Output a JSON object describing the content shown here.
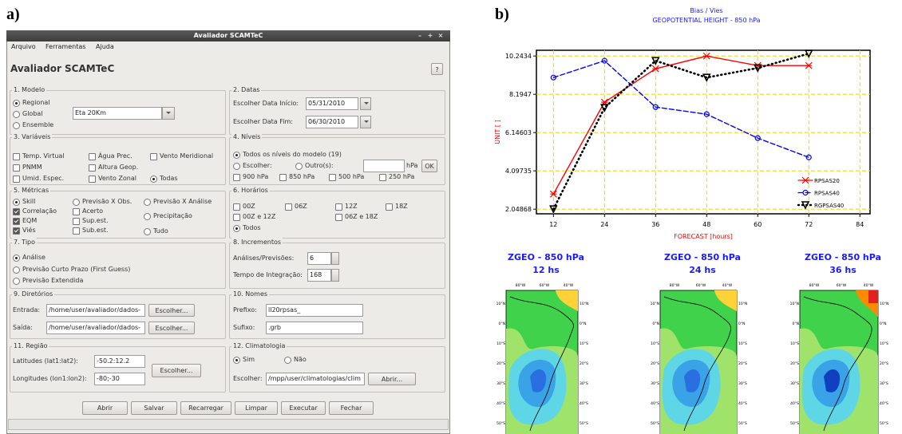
{
  "figure_labels": [
    "a)",
    "b)"
  ],
  "window": {
    "title": "Avaliador SCAMTeC",
    "controls": [
      "–",
      "+",
      "×"
    ]
  },
  "menu": [
    "Arquivo",
    "Ferramentas",
    "Ajuda"
  ],
  "header": {
    "title": "Avaliador SCAMTeC",
    "help": "?"
  },
  "panels": [
    {
      "title": "1. Modelo",
      "items": [
        {
          "label": "Regional",
          "control": "radio",
          "on": true
        },
        {
          "label": "Global",
          "control": "radio"
        },
        {
          "label": "Ensemble",
          "control": "radio"
        }
      ],
      "combo": "Eta 20Km"
    },
    {
      "title": "2. Datas",
      "fields": [
        {
          "label": "Escolher Data Início:",
          "value": "05/31/2010"
        },
        {
          "label": "Escolher Data Fim:",
          "value": "06/30/2010"
        }
      ]
    },
    {
      "title": "3. Variáveis",
      "items": [
        {
          "label": "Temp. Virtual",
          "control": "check"
        },
        {
          "label": "Água Prec.",
          "control": "check"
        },
        {
          "label": "Vento Meridional",
          "control": "check"
        },
        {
          "label": "PNMM",
          "control": "check"
        },
        {
          "label": "Altura Geop.",
          "control": "check"
        },
        {
          "label": "Umid. Espec.",
          "control": "check"
        },
        {
          "label": "Vento Zonal",
          "control": "check"
        },
        {
          "label": "Todas",
          "control": "radio",
          "on": true
        }
      ]
    },
    {
      "title": "4. Níveis",
      "items": [
        {
          "label": "Todos os níveis do modelo (19)",
          "control": "radio",
          "on": true
        },
        {
          "label": "Escolher:",
          "control": "radio"
        },
        {
          "label": "Outro(s):",
          "control": "radio"
        },
        {
          "label": "900 hPa",
          "control": "check"
        },
        {
          "label": "850 hPa",
          "control": "check"
        },
        {
          "label": "500 hPa",
          "control": "check"
        },
        {
          "label": "250 hPa",
          "control": "check"
        }
      ],
      "unit": "hPa",
      "ok": "OK"
    },
    {
      "title": "5. Métricas",
      "items": [
        {
          "label": "Skill",
          "control": "radio",
          "on": true
        },
        {
          "label": "Previsão X Obs.",
          "control": "radio"
        },
        {
          "label": "Previsão X Análise",
          "control": "radio"
        },
        {
          "label": "Correlação",
          "control": "check",
          "on": true
        },
        {
          "label": "Acerto",
          "control": "check"
        },
        {
          "label": "EQM",
          "control": "check",
          "on": true
        },
        {
          "label": "Sup.est.",
          "control": "check"
        },
        {
          "label": "Precipitação",
          "control": "radio"
        },
        {
          "label": "Viés",
          "control": "check",
          "on": true
        },
        {
          "label": "Sub.est.",
          "control": "check"
        },
        {
          "label": "Tudo",
          "control": "radio"
        }
      ]
    },
    {
      "title": "6. Horários",
      "items": [
        {
          "label": "00Z",
          "control": "check"
        },
        {
          "label": "06Z",
          "control": "check"
        },
        {
          "label": "12Z",
          "control": "check"
        },
        {
          "label": "18Z",
          "control": "check"
        },
        {
          "label": "00Z e 12Z",
          "control": "check"
        },
        {
          "label": "06Z e 18Z",
          "control": "check"
        },
        {
          "label": "Todos",
          "control": "radio",
          "on": true
        }
      ]
    },
    {
      "title": "7. Tipo",
      "items": [
        {
          "label": "Análise",
          "control": "radio",
          "on": true
        },
        {
          "label": "Previsão Curto Prazo (First Guess)",
          "control": "radio"
        },
        {
          "label": "Previsão Extendida",
          "control": "radio"
        }
      ]
    },
    {
      "title": "8. Incrementos",
      "fields": [
        {
          "label": "Análises/Previsões:",
          "value": 6
        },
        {
          "label": "Tempo de Integração:",
          "value": 168
        }
      ]
    },
    {
      "title": "9. Diretórios",
      "fields": [
        {
          "label": "Entrada:",
          "value": "/home/user/avaliador/dados-",
          "button": "Escolher..."
        },
        {
          "label": "Saída:",
          "value": "/home/user/avaliador/dados-",
          "button": "Escolher..."
        }
      ]
    },
    {
      "title": "10. Nomes",
      "fields": [
        {
          "label": "Prefixo:",
          "value": "ll20rpsas_"
        },
        {
          "label": "Sufixo:",
          "value": ".grb"
        }
      ]
    },
    {
      "title": "11. Região",
      "fields": [
        {
          "label": "Latitudes (lat1:lat2):",
          "value": "-50.2:12.2"
        },
        {
          "label": "Longitudes (lon1:lon2):",
          "value": "-80;-30"
        }
      ],
      "button": "Escolher..."
    },
    {
      "title": "12. Climatologia",
      "items": [
        {
          "label": "Sim",
          "control": "radio",
          "on": true
        },
        {
          "label": "Não",
          "control": "radio"
        }
      ],
      "fields": [
        {
          "label": "Escolher:",
          "value": "/mpp/user/climatologias/clim",
          "button": "Abrir..."
        }
      ]
    }
  ],
  "buttons": [
    "Abrir",
    "Salvar",
    "Recarregar",
    "Limpar",
    "Executar",
    "Fechar"
  ],
  "chart": {
    "type": "line",
    "title": "Bias / Vies",
    "subtitle": "GEOPOTENTIAL HEIGHT - 850 hPa",
    "x_label": "FORECAST [hours]",
    "y_label": "UNIT [ ]",
    "x": [
      12,
      24,
      36,
      48,
      60,
      72
    ],
    "xlim": [
      8,
      86.4
    ],
    "ylim": [
      1.8,
      10.55
    ],
    "xticks": [
      12,
      24,
      36,
      48,
      60,
      72,
      84
    ],
    "yticks": [
      2.04868,
      4.09735,
      6.14603,
      8.1947,
      10.2434
    ],
    "grid": true,
    "grid_color": "#e6d600",
    "series": [
      {
        "name": "RPSAS20",
        "color": "#ff0000",
        "marker": "x",
        "dash": "solid",
        "values": [
          2.86,
          7.77,
          9.56,
          10.24,
          9.73,
          9.73
        ]
      },
      {
        "name": "RPSAS40",
        "color": "#0000ff",
        "marker": "circle",
        "dash": "dashed",
        "values": [
          9.09,
          9.99,
          7.51,
          7.13,
          5.85,
          4.82
        ]
      },
      {
        "name": "RGPSAS40",
        "color": "#000000",
        "marker": "triangle-down",
        "dash": "dotted",
        "values": [
          2.05,
          7.47,
          9.99,
          9.09,
          9.6,
          10.37
        ]
      }
    ]
  },
  "maps": [
    {
      "title": "ZGEO - 850 hPa",
      "subtitle": "12 hs"
    },
    {
      "title": "ZGEO - 850 hPa",
      "subtitle": "24 hs"
    },
    {
      "title": "ZGEO - 850 hPa",
      "subtitle": "36 hs"
    }
  ],
  "map_axes": {
    "lon": [
      "80°W",
      "60°W",
      "40°W"
    ],
    "lat": [
      "10°N",
      "0°N",
      "10°S",
      "20°S",
      "30°S",
      "40°S",
      "50°S"
    ]
  }
}
